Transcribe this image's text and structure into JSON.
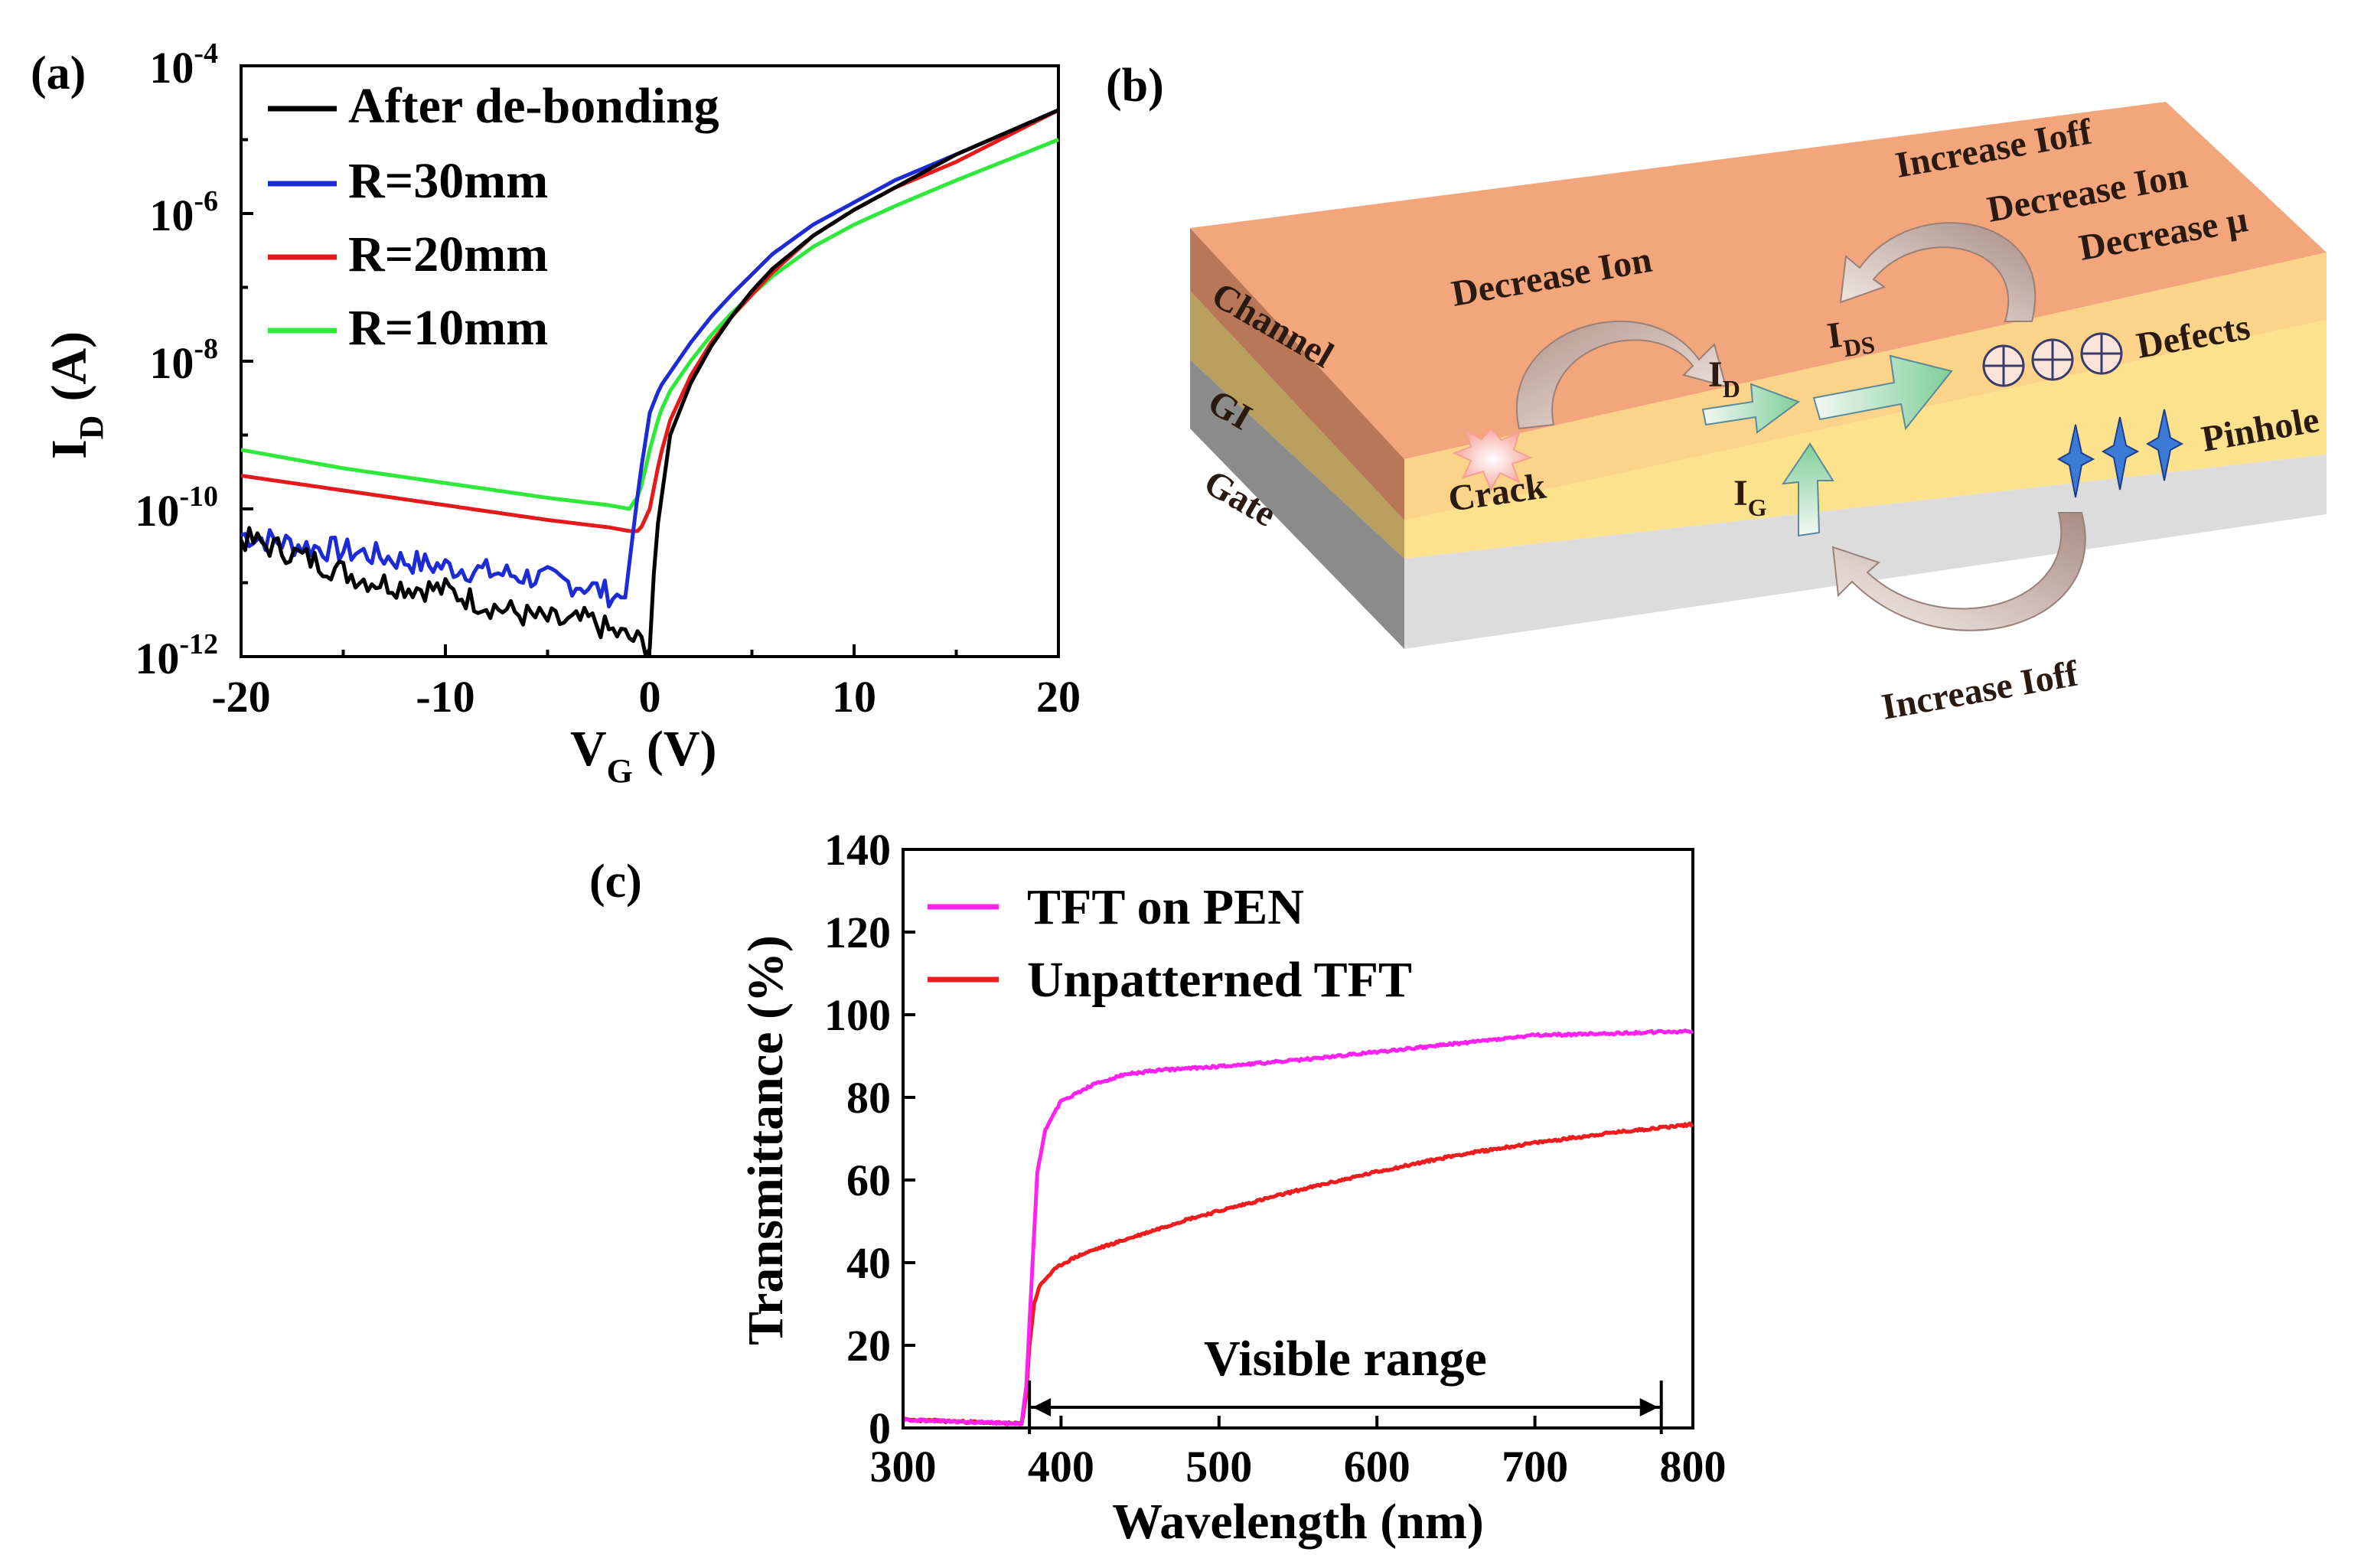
{
  "panel_labels": {
    "a": "(a)",
    "b": "(b)",
    "c": "(c)"
  },
  "chart_data": [
    {
      "id": "a",
      "type": "line",
      "title": "",
      "xlabel": "V",
      "xlabel_sub": "G",
      "xlabel_unit": "(V)",
      "ylabel": "I",
      "ylabel_sub": "D",
      "ylabel_unit": "(A)",
      "yscale": "log",
      "xlim": [
        -20,
        20
      ],
      "ylim_exp": [
        -12,
        -4
      ],
      "x_ticks": [
        -20,
        -10,
        0,
        10,
        20
      ],
      "y_tick_base": "10",
      "y_tick_exps": [
        "-12",
        "-10",
        "-8",
        "-6",
        "-4"
      ],
      "series": [
        {
          "name": "After de-bonding",
          "color": "#000000",
          "x": [
            -20,
            -18,
            -16,
            -14,
            -12,
            -10,
            -8,
            -6,
            -5,
            -4,
            -3,
            -2,
            -1,
            -0.5,
            0,
            0.3,
            1,
            2,
            3,
            4,
            5,
            6,
            8,
            10,
            12,
            15,
            20
          ],
          "logy": [
            -10.4,
            -10.55,
            -10.75,
            -10.95,
            -11.05,
            -11.1,
            -11.3,
            -11.45,
            -11.5,
            -11.55,
            -11.5,
            -11.65,
            -11.75,
            -11.8,
            -11.85,
            -10.4,
            -9.0,
            -8.3,
            -7.8,
            -7.4,
            -7.05,
            -6.75,
            -6.3,
            -5.95,
            -5.65,
            -5.2,
            -4.6
          ],
          "noise": true
        },
        {
          "name": "R=30mm",
          "color": "#1c2bd6",
          "x": [
            -20,
            -17,
            -14,
            -11,
            -8,
            -5,
            -3,
            -1.5,
            -1.2,
            -0.5,
            0,
            0.5,
            1,
            2,
            3,
            4,
            6,
            8,
            10,
            12,
            15,
            20
          ],
          "logy": [
            -10.35,
            -10.5,
            -10.6,
            -10.75,
            -10.85,
            -10.95,
            -11.05,
            -11.2,
            -11.2,
            -9.6,
            -8.7,
            -8.35,
            -8.15,
            -7.75,
            -7.4,
            -7.1,
            -6.55,
            -6.15,
            -5.85,
            -5.55,
            -5.2,
            -4.6
          ],
          "noise": true
        },
        {
          "name": "R=20mm",
          "color": "#e41a1a",
          "x": [
            -20,
            -15,
            -10,
            -5,
            -2,
            -1,
            -0.5,
            0,
            0.5,
            1,
            2,
            3,
            4,
            6,
            8,
            10,
            12,
            15,
            20
          ],
          "logy": [
            -9.55,
            -9.75,
            -9.95,
            -10.15,
            -10.25,
            -10.3,
            -10.3,
            -10.0,
            -9.3,
            -8.8,
            -8.2,
            -7.75,
            -7.4,
            -6.8,
            -6.3,
            -5.95,
            -5.65,
            -5.3,
            -4.6
          ],
          "noise": false
        },
        {
          "name": "R=10mm",
          "color": "#2ee83a",
          "x": [
            -20,
            -15,
            -10,
            -5,
            -2,
            -1,
            -0.5,
            0,
            0.5,
            1,
            2,
            3,
            4,
            6,
            8,
            10,
            12,
            15,
            20
          ],
          "logy": [
            -9.2,
            -9.45,
            -9.65,
            -9.85,
            -9.95,
            -10.0,
            -9.8,
            -9.2,
            -8.7,
            -8.4,
            -8.0,
            -7.65,
            -7.35,
            -6.85,
            -6.45,
            -6.15,
            -5.9,
            -5.55,
            -5.0
          ],
          "noise": false
        }
      ]
    },
    {
      "id": "c",
      "type": "line",
      "title": "",
      "xlabel": "Wavelength (nm)",
      "ylabel": "Transmittance (%)",
      "xlim": [
        300,
        800
      ],
      "ylim": [
        0,
        140
      ],
      "x_ticks": [
        300,
        400,
        500,
        600,
        700,
        800
      ],
      "y_ticks": [
        0,
        20,
        40,
        60,
        80,
        100,
        120,
        140
      ],
      "annotation": "Visible range",
      "annotation_range": [
        380,
        780
      ],
      "series": [
        {
          "name": "TFT on PEN",
          "color": "#ff22ee",
          "x": [
            300,
            340,
            375,
            378,
            382,
            385,
            390,
            395,
            400,
            410,
            420,
            440,
            460,
            480,
            500,
            550,
            600,
            650,
            700,
            750,
            800
          ],
          "y": [
            2,
            1.5,
            1,
            10,
            40,
            62,
            72,
            76,
            79,
            81,
            83,
            85.5,
            86.5,
            87,
            87.5,
            89,
            91,
            93,
            95,
            95.5,
            96
          ]
        },
        {
          "name": "Unpatterned TFT",
          "color": "#ee1c1c",
          "x": [
            300,
            340,
            375,
            378,
            380,
            383,
            386,
            390,
            395,
            400,
            410,
            420,
            440,
            460,
            480,
            500,
            550,
            600,
            650,
            700,
            750,
            800
          ],
          "y": [
            2,
            1.5,
            1,
            8,
            20,
            30,
            34,
            36,
            38,
            39.5,
            41.5,
            43,
            45.5,
            48,
            50.5,
            52.5,
            57.5,
            62,
            66,
            69,
            71.5,
            73.5
          ]
        }
      ]
    }
  ],
  "diagram": {
    "layers": [
      "Channel",
      "GI",
      "Gate"
    ],
    "labels": {
      "decrease_ion": "Decrease Ion",
      "increase_ioff_top": "Increase Ioff",
      "decrease_ion_2": "Decrease Ion",
      "decrease_mu": "Decrease μ",
      "defects": "Defects",
      "pinhole": "Pinhole",
      "crack": "Crack",
      "increase_ioff_bottom": "Increase Ioff",
      "id_main": "I",
      "id_sub": "D",
      "ids_main": "I",
      "ids_sub": "DS",
      "ig_main": "I",
      "ig_sub": "G"
    },
    "colors": {
      "channel": "#f3a67c",
      "gi": "#fde28e",
      "gate": "#d9d9d9"
    }
  }
}
